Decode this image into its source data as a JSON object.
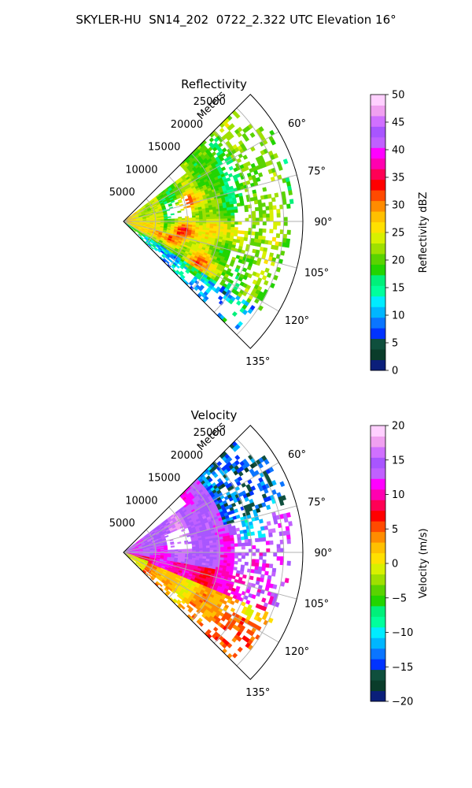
{
  "figure_title": "SKYLER-HU  SN14_202  0722_2.322 UTC Elevation 16°",
  "chart_data": [
    {
      "type": "heatmap",
      "subtype": "polar-sector",
      "title": "Reflectivity",
      "radial_label": "Meters",
      "radial_ticks": [
        "5000",
        "10000",
        "15000",
        "20000",
        "25000"
      ],
      "radial_max": 28000,
      "azimuth_range_deg": [
        45,
        135
      ],
      "azimuth_ticks": [
        "60°",
        "75°",
        "90°",
        "105°",
        "120°",
        "135°"
      ],
      "colorbar": {
        "label": "Reflectivity dBZ",
        "range": [
          0,
          50
        ],
        "ticks": [
          "0",
          "5",
          "10",
          "15",
          "20",
          "25",
          "30",
          "35",
          "40",
          "45",
          "50"
        ],
        "colors": [
          "#0b1f7a",
          "#0a3c2a",
          "#0f4f3d",
          "#0033ff",
          "#0a75ff",
          "#00b6ff",
          "#00ecff",
          "#00ff9c",
          "#00f07a",
          "#22d400",
          "#5ad300",
          "#9fe000",
          "#d8f000",
          "#ffe000",
          "#ffc000",
          "#ff8c00",
          "#ff4a00",
          "#ff0000",
          "#ff0055",
          "#ff00b0",
          "#ff00ff",
          "#c060ff",
          "#a855ff",
          "#d070ff",
          "#f0a0f0",
          "#ffd0ff"
        ]
      }
    },
    {
      "type": "heatmap",
      "subtype": "polar-sector",
      "title": "Velocity",
      "radial_label": "Meters",
      "radial_ticks": [
        "5000",
        "10000",
        "15000",
        "20000",
        "25000"
      ],
      "radial_max": 28000,
      "azimuth_range_deg": [
        45,
        135
      ],
      "azimuth_ticks": [
        "60°",
        "75°",
        "90°",
        "105°",
        "120°",
        "135°"
      ],
      "colorbar": {
        "label": "Velocity (m/s)",
        "range": [
          -20,
          20
        ],
        "ticks": [
          "−20",
          "−15",
          "−10",
          "−5",
          "0",
          "5",
          "10",
          "15",
          "20"
        ],
        "colors": [
          "#0b1f7a",
          "#0a3c2a",
          "#0f4f3d",
          "#0033ff",
          "#0a75ff",
          "#00b6ff",
          "#00ecff",
          "#00ff9c",
          "#00f07a",
          "#22d400",
          "#5ad300",
          "#9fe000",
          "#d8f000",
          "#ffe000",
          "#ffc000",
          "#ff8c00",
          "#ff4a00",
          "#ff0000",
          "#ff0055",
          "#ff00b0",
          "#ff00ff",
          "#c060ff",
          "#a855ff",
          "#d070ff",
          "#f0a0f0",
          "#ffd0ff"
        ]
      }
    }
  ]
}
